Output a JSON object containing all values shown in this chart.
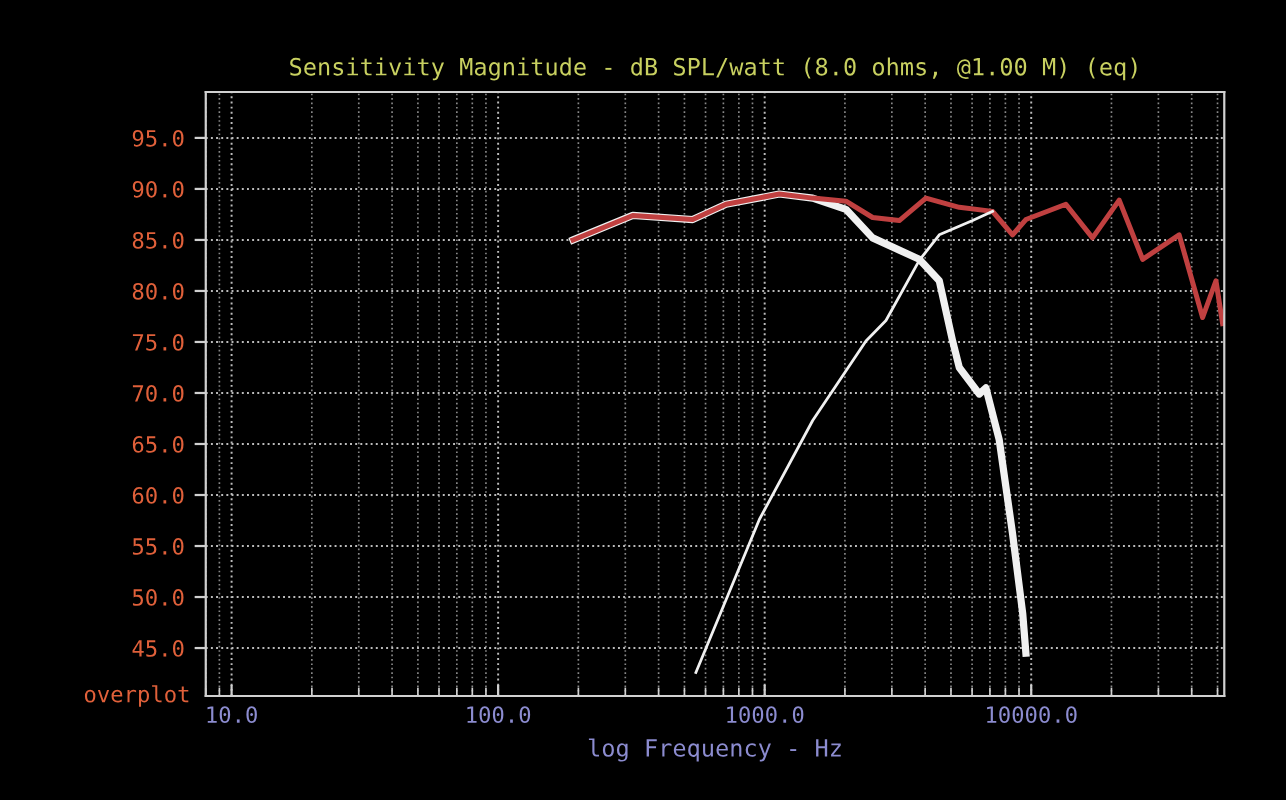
{
  "chart_data": {
    "type": "line",
    "title": "Sensitivity Magnitude - dB SPL/watt (8.0 ohms, @1.00 M) (eq)",
    "xlabel": "log Frequency - Hz",
    "log": "x",
    "grid": true,
    "legend": false,
    "marker": "none",
    "line_style": "solid",
    "xlim": [
      8,
      53000
    ],
    "ylim": [
      40.3,
      99.5
    ],
    "xticks": [
      {
        "value": 10,
        "label": "10.0"
      },
      {
        "value": 100,
        "label": "100.0"
      },
      {
        "value": 1000,
        "label": "1000.0"
      },
      {
        "value": 10000,
        "label": "10000.0"
      }
    ],
    "yticks": [
      {
        "value": 45,
        "label": "45.0"
      },
      {
        "value": 50,
        "label": "50.0"
      },
      {
        "value": 55,
        "label": "55.0"
      },
      {
        "value": 60,
        "label": "60.0"
      },
      {
        "value": 65,
        "label": "65.0"
      },
      {
        "value": 70,
        "label": "70.0"
      },
      {
        "value": 75,
        "label": "75.0"
      },
      {
        "value": 80,
        "label": "80.0"
      },
      {
        "value": 85,
        "label": "85.0"
      },
      {
        "value": 90,
        "label": "90.0"
      },
      {
        "value": 95,
        "label": "95.0"
      }
    ],
    "annotations": [
      "overplot"
    ],
    "series": [
      {
        "color": "#f0f0f0",
        "x": [
          191,
          320,
          537,
          716,
          1135,
          1514,
          2018,
          2541,
          3802,
          4519,
          5070,
          5370,
          6383,
          6761,
          7586,
          8511,
          9290,
          9550
        ],
        "values": [
          85.0,
          87.4,
          87.0,
          88.5,
          89.5,
          89.1,
          88.0,
          85.2,
          83.1,
          81.0,
          75.1,
          72.5,
          69.9,
          70.5,
          65.4,
          56.2,
          48.4,
          44.5
        ]
      },
      {
        "color": "#c04040",
        "x": [
          191,
          320,
          537,
          716,
          1135,
          1514,
          2018,
          2541,
          3199,
          4027,
          5370,
          7161,
          8511,
          9550,
          13490,
          16982,
          21380,
          26182,
          35892,
          43954,
          49317,
          52240
        ],
        "values": [
          85.0,
          87.4,
          87.0,
          88.5,
          89.5,
          89.1,
          88.8,
          87.2,
          86.9,
          89.1,
          88.2,
          87.8,
          85.5,
          87.0,
          88.5,
          85.2,
          88.9,
          83.1,
          85.5,
          77.4,
          81.0,
          76.8
        ]
      },
      {
        "color": "#f0f0f0",
        "x": [
          552,
          955,
          1514,
          2399,
          2851,
          3802,
          4519,
          6026,
          7161
        ],
        "values": [
          42.6,
          57.6,
          67.3,
          75.1,
          77.1,
          83.0,
          85.5,
          86.9,
          87.8
        ]
      }
    ]
  }
}
